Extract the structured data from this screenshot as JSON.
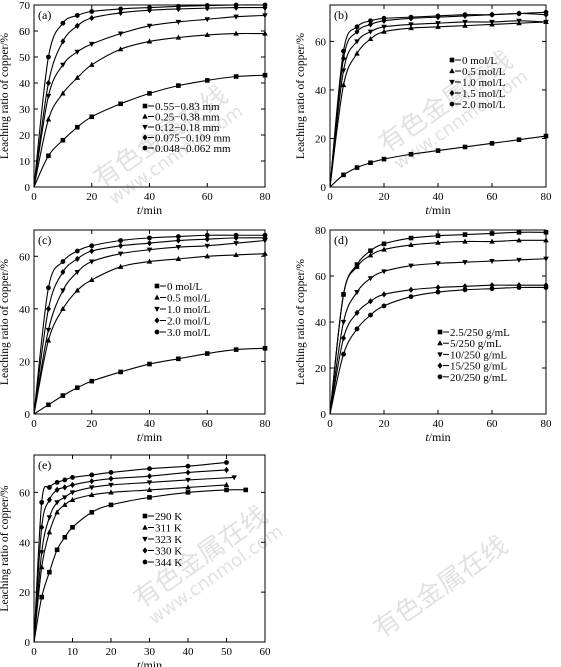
{
  "watermark": {
    "cn": "有色金属在线",
    "en": "www.cnnmol.com"
  },
  "chart_data": [
    {
      "type": "line",
      "panel_label": "(a)",
      "xlabel_italic": "t",
      "xlabel": "/min",
      "ylabel": "Leaching ratio of copper/%",
      "xlim": [
        0,
        80
      ],
      "ylim": [
        0,
        70
      ],
      "xticks": [
        0,
        20,
        40,
        60,
        80
      ],
      "yticks": [
        0,
        10,
        20,
        30,
        40,
        50,
        60,
        70
      ],
      "legend_position": "lower-right",
      "series": [
        {
          "name": "0.55−0.83 mm",
          "marker": "square",
          "x": [
            0,
            5,
            10,
            15,
            20,
            30,
            40,
            50,
            60,
            70,
            80
          ],
          "y": [
            0,
            12,
            18,
            23,
            27,
            32,
            36,
            39,
            41,
            42.5,
            43
          ]
        },
        {
          "name": "0.25−0.38 mm",
          "marker": "triangle-up",
          "x": [
            0,
            5,
            10,
            15,
            20,
            30,
            40,
            50,
            60,
            70,
            80
          ],
          "y": [
            0,
            26,
            36,
            42,
            47,
            53,
            56,
            57.5,
            58.5,
            59,
            59
          ]
        },
        {
          "name": "0.12−0.18 mm",
          "marker": "triangle-down",
          "x": [
            0,
            5,
            10,
            15,
            20,
            30,
            40,
            50,
            60,
            70,
            80
          ],
          "y": [
            0,
            35,
            47,
            52,
            55,
            59,
            62,
            63.5,
            64.5,
            65.5,
            66
          ]
        },
        {
          "name": "0.075−0.109 mm",
          "marker": "diamond",
          "x": [
            0,
            5,
            10,
            15,
            20,
            30,
            40,
            50,
            60,
            70,
            80
          ],
          "y": [
            0,
            40,
            56,
            62,
            65,
            67,
            68,
            68.5,
            68.8,
            69,
            69
          ]
        },
        {
          "name": "0.048−0.062 mm",
          "marker": "circle",
          "x": [
            0,
            5,
            10,
            15,
            20,
            30,
            40,
            50,
            60,
            70,
            80
          ],
          "y": [
            0,
            50,
            63,
            66,
            67.5,
            68.5,
            69,
            69.5,
            69.8,
            70,
            70
          ]
        }
      ]
    },
    {
      "type": "line",
      "panel_label": "(b)",
      "xlabel_italic": "t",
      "xlabel": "/min",
      "ylabel": "Leaching ratio of copper/%",
      "xlim": [
        0,
        80
      ],
      "ylim": [
        0,
        75
      ],
      "xticks": [
        0,
        20,
        40,
        60,
        80
      ],
      "yticks": [
        0,
        20,
        40,
        60
      ],
      "legend_position": "center-right",
      "series": [
        {
          "name": "0 mol/L",
          "marker": "square",
          "x": [
            0,
            5,
            10,
            15,
            20,
            30,
            40,
            50,
            60,
            70,
            80
          ],
          "y": [
            0,
            5,
            8,
            10,
            11.5,
            13.5,
            15,
            16.5,
            18,
            19.5,
            21
          ]
        },
        {
          "name": "0.5 mol/L",
          "marker": "triangle-up",
          "x": [
            0,
            5,
            10,
            15,
            20,
            30,
            40,
            50,
            60,
            70,
            80
          ],
          "y": [
            0,
            42,
            55,
            61,
            64,
            65.5,
            66,
            66.5,
            67,
            67.5,
            68
          ]
        },
        {
          "name": "1.0 mol/L",
          "marker": "triangle-down",
          "x": [
            0,
            5,
            10,
            15,
            20,
            30,
            40,
            50,
            60,
            70,
            80
          ],
          "y": [
            0,
            48,
            60,
            64,
            66,
            67,
            67.5,
            68,
            68,
            68.5,
            68
          ]
        },
        {
          "name": "1.5 mol/L",
          "marker": "diamond",
          "x": [
            0,
            5,
            10,
            15,
            20,
            30,
            40,
            50,
            60,
            70,
            80
          ],
          "y": [
            0,
            53,
            64,
            67,
            68.5,
            69.5,
            70,
            70.5,
            71,
            71.5,
            71
          ]
        },
        {
          "name": "2.0 mol/L",
          "marker": "circle",
          "x": [
            0,
            5,
            10,
            15,
            20,
            30,
            40,
            50,
            60,
            70,
            80
          ],
          "y": [
            0,
            56,
            66,
            68.5,
            69.5,
            70,
            70.5,
            71,
            71,
            71.5,
            72
          ]
        }
      ]
    },
    {
      "type": "line",
      "panel_label": "(c)",
      "xlabel_italic": "t",
      "xlabel": "/min",
      "ylabel": "Leaching ratio of copper/%",
      "xlim": [
        0,
        80
      ],
      "ylim": [
        0,
        70
      ],
      "xticks": [
        0,
        20,
        40,
        60,
        80
      ],
      "yticks": [
        0,
        20,
        40,
        60
      ],
      "legend_position": "center-right",
      "series": [
        {
          "name": "0 mol/L",
          "marker": "square",
          "x": [
            0,
            5,
            10,
            15,
            20,
            30,
            40,
            50,
            60,
            70,
            80
          ],
          "y": [
            0,
            3.5,
            7,
            10,
            12.5,
            16,
            19,
            21,
            23,
            24.5,
            25
          ]
        },
        {
          "name": "0.5 mol/L",
          "marker": "triangle-up",
          "x": [
            0,
            5,
            10,
            15,
            20,
            30,
            40,
            50,
            60,
            70,
            80
          ],
          "y": [
            0,
            28,
            40,
            47,
            51,
            56,
            58,
            59,
            60,
            60.5,
            61
          ]
        },
        {
          "name": "1.0 mol/L",
          "marker": "triangle-down",
          "x": [
            0,
            5,
            10,
            15,
            20,
            30,
            40,
            50,
            60,
            70,
            80
          ],
          "y": [
            0,
            32,
            47,
            54,
            58,
            61,
            62.5,
            63.5,
            64,
            65,
            66
          ]
        },
        {
          "name": "2.0 mol/L",
          "marker": "diamond",
          "x": [
            0,
            5,
            10,
            15,
            20,
            30,
            40,
            50,
            60,
            70,
            80
          ],
          "y": [
            0,
            40,
            54,
            59,
            62,
            64,
            65,
            66,
            66.5,
            67,
            67
          ]
        },
        {
          "name": "3.0 mol/L",
          "marker": "circle",
          "x": [
            0,
            5,
            10,
            15,
            20,
            30,
            40,
            50,
            60,
            70,
            80
          ],
          "y": [
            0,
            48,
            58,
            62,
            64,
            66,
            67,
            67.5,
            68,
            68,
            68
          ]
        }
      ]
    },
    {
      "type": "line",
      "panel_label": "(d)",
      "xlabel_italic": "t",
      "xlabel": "/min",
      "ylabel": "Leaching ratio of copper/%",
      "xlim": [
        0,
        80
      ],
      "ylim": [
        0,
        80
      ],
      "xticks": [
        0,
        20,
        40,
        60,
        80
      ],
      "yticks": [
        0,
        20,
        40,
        60,
        80
      ],
      "legend_position": "lower-right",
      "series": [
        {
          "name": "2.5/250 g/mL",
          "marker": "square",
          "x": [
            0,
            5,
            10,
            15,
            20,
            30,
            40,
            50,
            60,
            70,
            80
          ],
          "y": [
            0,
            52,
            65,
            71,
            74,
            76.5,
            77.5,
            78,
            78.5,
            79,
            79
          ]
        },
        {
          "name": "5/250 g/mL",
          "marker": "triangle-up",
          "x": [
            0,
            5,
            10,
            15,
            20,
            30,
            40,
            50,
            60,
            70,
            80
          ],
          "y": [
            0,
            52,
            64,
            69,
            71.5,
            73.5,
            74.5,
            75,
            75,
            75.5,
            75.5
          ]
        },
        {
          "name": "10/250 g/mL",
          "marker": "triangle-down",
          "x": [
            0,
            5,
            10,
            15,
            20,
            30,
            40,
            50,
            60,
            70,
            80
          ],
          "y": [
            0,
            40,
            53,
            59,
            62,
            64.5,
            65.5,
            66,
            66.5,
            67,
            67.5
          ]
        },
        {
          "name": "15/250 g/mL",
          "marker": "diamond",
          "x": [
            0,
            5,
            10,
            15,
            20,
            30,
            40,
            50,
            60,
            70,
            80
          ],
          "y": [
            0,
            33,
            44,
            49,
            52,
            54,
            55,
            55.5,
            56,
            56,
            56
          ]
        },
        {
          "name": "20/250 g/mL",
          "marker": "circle",
          "x": [
            0,
            5,
            10,
            15,
            20,
            30,
            40,
            50,
            60,
            70,
            80
          ],
          "y": [
            0,
            26,
            37,
            43,
            47,
            51,
            53,
            54,
            54.5,
            55,
            55
          ]
        }
      ]
    },
    {
      "type": "line",
      "panel_label": "(e)",
      "xlabel_italic": "t",
      "xlabel": "/min",
      "ylabel": "Leaching ratio of copper/%",
      "xlim": [
        0,
        60
      ],
      "ylim": [
        0,
        75
      ],
      "xticks": [
        0,
        10,
        20,
        30,
        40,
        50,
        60
      ],
      "yticks": [
        0,
        20,
        40,
        60
      ],
      "legend_position": "center-right",
      "series": [
        {
          "name": "290 K",
          "marker": "square",
          "x": [
            0,
            2,
            4,
            6,
            8,
            10,
            15,
            20,
            30,
            40,
            50,
            55
          ],
          "y": [
            0,
            18,
            28,
            37,
            42,
            46,
            52,
            55,
            58,
            60,
            61,
            61
          ]
        },
        {
          "name": "311 K",
          "marker": "triangle-up",
          "x": [
            0,
            2,
            4,
            6,
            8,
            10,
            15,
            20,
            30,
            40,
            50
          ],
          "y": [
            0,
            30,
            44,
            52,
            55,
            57,
            59,
            60,
            61,
            62,
            63
          ]
        },
        {
          "name": "323 K",
          "marker": "triangle-down",
          "x": [
            0,
            2,
            4,
            6,
            8,
            10,
            15,
            20,
            30,
            40,
            52
          ],
          "y": [
            0,
            36,
            50,
            56,
            58,
            60,
            62,
            63,
            64,
            65,
            66
          ]
        },
        {
          "name": "330 K",
          "marker": "diamond",
          "x": [
            0,
            2,
            4,
            6,
            8,
            10,
            15,
            20,
            30,
            40,
            50
          ],
          "y": [
            0,
            46,
            57,
            61,
            62,
            63,
            64.5,
            65.5,
            66.5,
            68,
            69
          ]
        },
        {
          "name": "344 K",
          "marker": "circle",
          "x": [
            0,
            2,
            4,
            6,
            8,
            10,
            15,
            20,
            30,
            40,
            50
          ],
          "y": [
            0,
            56,
            62,
            64,
            65,
            66,
            67,
            68,
            69.5,
            70.5,
            72
          ]
        }
      ]
    }
  ]
}
